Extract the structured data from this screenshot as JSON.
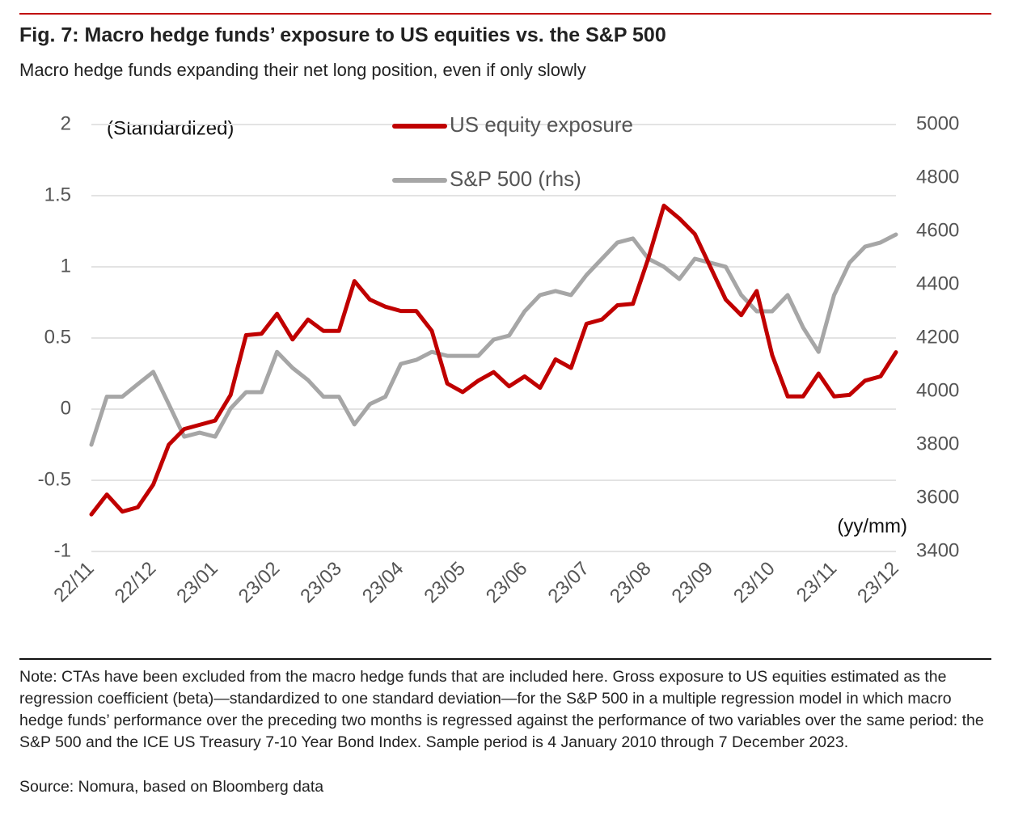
{
  "chart_data": {
    "type": "line",
    "title": "Fig. 7: Macro hedge funds’ exposure to US equities vs. the S&P 500",
    "subtitle": "Macro hedge funds expanding their net long position, even if only slowly",
    "y_label": "(Standardized)",
    "x_label": "(yy/mm)",
    "note": "Note: CTAs have been excluded from the macro hedge funds that are included here. Gross exposure to US equities estimated as the regression coefficient (beta)—standardized to one standard deviation—for the S&P 500 in a multiple regression model in which macro hedge funds’ performance over the preceding two months is regressed against the performance of two variables over the same period: the S&P 500 and the ICE US Treasury 7-10 Year Bond Index. Sample period is 4 January 2010 through 7 December 2023.",
    "source": "Source: Nomura, based on Bloomberg data",
    "categories": [
      "22/11",
      null,
      null,
      null,
      "22/12",
      null,
      null,
      null,
      "23/01",
      null,
      null,
      null,
      "23/02",
      null,
      null,
      null,
      "23/03",
      null,
      null,
      null,
      "23/04",
      null,
      null,
      null,
      "23/05",
      null,
      null,
      null,
      "23/06",
      null,
      null,
      null,
      "23/07",
      null,
      null,
      null,
      "23/08",
      null,
      null,
      null,
      "23/09",
      null,
      null,
      null,
      "23/10",
      null,
      null,
      null,
      "23/11",
      null,
      null,
      null,
      "23/12"
    ],
    "series": [
      {
        "name": "US equity exposure",
        "color": "#c00000",
        "values": [
          -0.74,
          -0.6,
          -0.72,
          -0.69,
          -0.53,
          -0.25,
          -0.14,
          -0.11,
          -0.08,
          0.1,
          0.52,
          0.53,
          0.67,
          0.49,
          0.63,
          0.55,
          0.55,
          0.9,
          0.77,
          0.72,
          0.69,
          0.69,
          0.55,
          0.18,
          0.12,
          0.2,
          0.26,
          0.16,
          0.23,
          0.15,
          0.35,
          0.29,
          0.6,
          0.63,
          0.73,
          0.74,
          1.06,
          1.43,
          1.34,
          1.23,
          1.0,
          0.77,
          0.66,
          0.83,
          0.38,
          0.09,
          0.09,
          0.25,
          0.09,
          0.1,
          0.2,
          0.23,
          0.4
        ]
      },
      {
        "name": "S&P 500 (rhs)",
        "color": "#a6a6a6",
        "axis": "y2",
        "values": [
          3800,
          3980,
          3980,
          4027,
          4073,
          3952,
          3830,
          3845,
          3830,
          3936,
          3997,
          3997,
          4148,
          4088,
          4042,
          3980,
          3980,
          3876,
          3952,
          3980,
          4103,
          4118,
          4148,
          4133,
          4133,
          4133,
          4194,
          4209,
          4300,
          4361,
          4376,
          4361,
          4436,
          4497,
          4558,
          4573,
          4497,
          4467,
          4421,
          4497,
          4482,
          4467,
          4361,
          4300,
          4300,
          4361,
          4239,
          4148,
          4361,
          4482,
          4542,
          4558,
          4588
        ]
      }
    ],
    "ylim": [
      -1,
      2
    ],
    "yticks": [
      -1,
      -0.5,
      0,
      0.5,
      1,
      1.5,
      2
    ],
    "y2lim": [
      3400,
      5000
    ],
    "y2ticks": [
      3400,
      3600,
      3800,
      4000,
      4200,
      4400,
      4600,
      4800,
      5000
    ],
    "grid": true
  }
}
